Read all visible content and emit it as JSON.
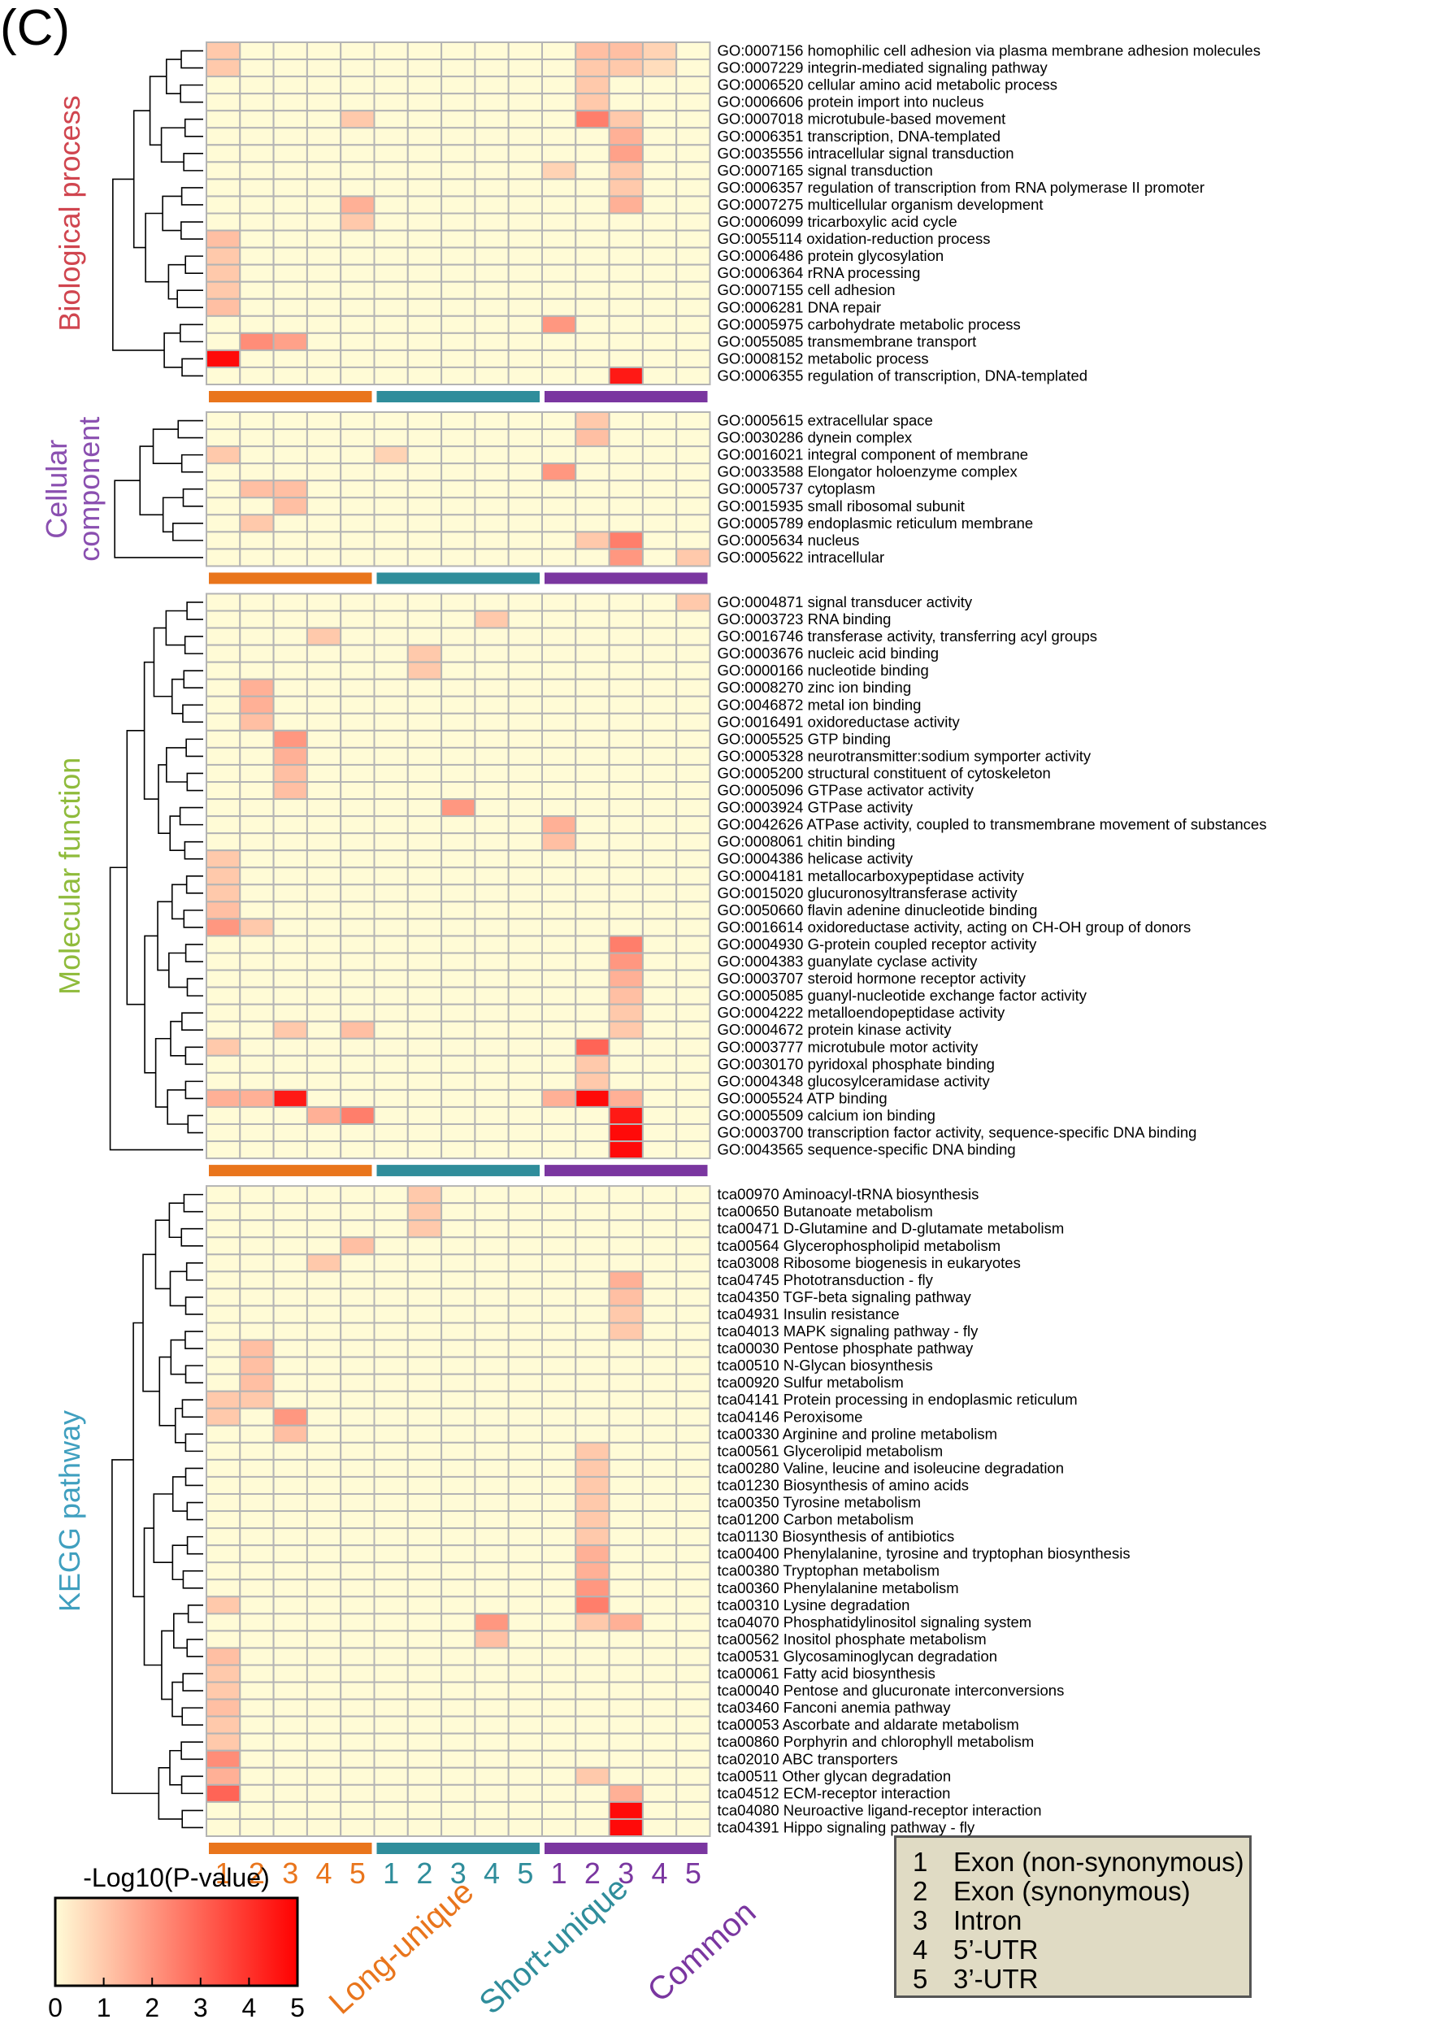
{
  "panel_label": "(C)",
  "colors": {
    "low": "#fffbd6",
    "high": "#ff0000",
    "grid": "#b4b4b4",
    "long_unique": "#e9751c",
    "short_unique": "#2f8d9b",
    "common": "#7a36a0",
    "biological_process": "#d0454f",
    "cellular_component": "#8a4fb0",
    "molecular_function": "#8fbb3b",
    "kegg_pathway": "#3f9fbf"
  },
  "groups": [
    {
      "name": "Long-unique",
      "color": "#e9751c"
    },
    {
      "name": "Short-unique",
      "color": "#2f8d9b"
    },
    {
      "name": "Common",
      "color": "#7a36a0"
    }
  ],
  "column_numbers": [
    "1",
    "2",
    "3",
    "4",
    "5"
  ],
  "type_legend": [
    {
      "num": "1",
      "label": "Exon (non-synonymous)"
    },
    {
      "num": "2",
      "label": "Exon (synonymous)"
    },
    {
      "num": "3",
      "label": "Intron"
    },
    {
      "num": "4",
      "label": "5’-UTR"
    },
    {
      "num": "5",
      "label": "3’-UTR"
    }
  ],
  "chart_data": {
    "type": "heatmap",
    "colorbar": {
      "title": "-Log10(P-value)",
      "range": [
        0,
        5
      ],
      "ticks": [
        "0",
        "1",
        "2",
        "3",
        "4",
        "5"
      ]
    },
    "columns_note": "15 columns: Long-unique 1–5, Short-unique 1–5, Common 1–5",
    "sections": [
      {
        "label_parts": [
          {
            "text": "Biological process",
            "color": "#d0454f"
          }
        ],
        "rows": [
          {
            "label": "GO:0007156 homophilic cell adhesion via plasma membrane adhesion molecules",
            "cells": {
              "0": 1,
              "11": 1.2,
              "12": 1.2,
              "13": 0.8
            }
          },
          {
            "label": "GO:0007229 integrin-mediated signaling pathway",
            "cells": {
              "0": 1,
              "11": 1,
              "12": 1,
              "13": 0.6
            }
          },
          {
            "label": "GO:0006520 cellular amino acid metabolic process",
            "cells": {
              "11": 1
            }
          },
          {
            "label": "GO:0006606 protein import into nucleus",
            "cells": {
              "11": 1
            }
          },
          {
            "label": "GO:0007018 microtubule-based movement",
            "cells": {
              "4": 1,
              "11": 2.5,
              "12": 1
            }
          },
          {
            "label": "GO:0006351 transcription, DNA-templated",
            "cells": {
              "12": 1.5
            }
          },
          {
            "label": "GO:0035556 intracellular signal transduction",
            "cells": {
              "12": 1.8
            }
          },
          {
            "label": "GO:0007165 signal transduction",
            "cells": {
              "10": 0.8,
              "12": 1
            }
          },
          {
            "label": "GO:0006357 regulation of transcription from RNA polymerase II promoter",
            "cells": {
              "12": 1
            }
          },
          {
            "label": "GO:0007275 multicellular organism development",
            "cells": {
              "4": 1.5,
              "12": 1.5
            }
          },
          {
            "label": "GO:0006099 tricarboxylic acid cycle",
            "cells": {
              "4": 1
            }
          },
          {
            "label": "GO:0055114 oxidation-reduction process",
            "cells": {
              "0": 1.2
            }
          },
          {
            "label": "GO:0006486 protein glycosylation",
            "cells": {
              "0": 1
            }
          },
          {
            "label": "GO:0006364 rRNA processing",
            "cells": {
              "0": 1
            }
          },
          {
            "label": "GO:0007155 cell adhesion",
            "cells": {
              "0": 1
            }
          },
          {
            "label": "GO:0006281 DNA repair",
            "cells": {
              "0": 1.2
            }
          },
          {
            "label": "GO:0005975 carbohydrate metabolic process",
            "cells": {
              "10": 2
            }
          },
          {
            "label": "GO:0055085 transmembrane transport",
            "cells": {
              "1": 2.2,
              "2": 1.8
            }
          },
          {
            "label": "GO:0008152 metabolic process",
            "cells": {
              "0": 4.8
            }
          },
          {
            "label": "GO:0006355 regulation of transcription, DNA-templated",
            "cells": {
              "12": 4.5
            }
          }
        ]
      },
      {
        "label_parts": [
          {
            "text": "Cellular",
            "color": "#8a4fb0"
          },
          {
            "text": "component",
            "color": "#8a4fb0"
          }
        ],
        "rows": [
          {
            "label": "GO:0005615 extracellular space",
            "cells": {
              "11": 1
            }
          },
          {
            "label": "GO:0030286 dynein complex",
            "cells": {
              "11": 1.2
            }
          },
          {
            "label": "GO:0016021 integral component of membrane",
            "cells": {
              "0": 1,
              "5": 0.8
            }
          },
          {
            "label": "GO:0033588 Elongator holoenzyme complex",
            "cells": {
              "10": 2
            }
          },
          {
            "label": "GO:0005737 cytoplasm",
            "cells": {
              "1": 1.2,
              "2": 1.2
            }
          },
          {
            "label": "GO:0015935 small ribosomal subunit",
            "cells": {
              "2": 1.2
            }
          },
          {
            "label": "GO:0005789 endoplasmic reticulum membrane",
            "cells": {
              "1": 1
            }
          },
          {
            "label": "GO:0005634 nucleus",
            "cells": {
              "11": 1,
              "12": 2.5
            }
          },
          {
            "label": "GO:0005622 intracellular",
            "cells": {
              "12": 2,
              "14": 1
            }
          }
        ]
      },
      {
        "label_parts": [
          {
            "text": "Molecular function",
            "color": "#8fbb3b"
          }
        ],
        "rows": [
          {
            "label": "GO:0004871 signal transducer activity",
            "cells": {
              "14": 1
            }
          },
          {
            "label": "GO:0003723 RNA binding",
            "cells": {
              "8": 1
            }
          },
          {
            "label": "GO:0016746 transferase activity, transferring acyl groups",
            "cells": {
              "3": 1
            }
          },
          {
            "label": "GO:0003676 nucleic acid binding",
            "cells": {
              "6": 1
            }
          },
          {
            "label": "GO:0000166 nucleotide binding",
            "cells": {
              "6": 1
            }
          },
          {
            "label": "GO:0008270 zinc ion binding",
            "cells": {
              "1": 1.5
            }
          },
          {
            "label": "GO:0046872 metal ion binding",
            "cells": {
              "1": 1.5
            }
          },
          {
            "label": "GO:0016491 oxidoreductase activity",
            "cells": {
              "1": 1.2
            }
          },
          {
            "label": "GO:0005525 GTP binding",
            "cells": {
              "2": 2
            }
          },
          {
            "label": "GO:0005328 neurotransmitter:sodium symporter activity",
            "cells": {
              "2": 1.5
            }
          },
          {
            "label": "GO:0005200 structural constituent of cytoskeleton",
            "cells": {
              "2": 1.2
            }
          },
          {
            "label": "GO:0005096 GTPase activator activity",
            "cells": {
              "2": 1.2
            }
          },
          {
            "label": "GO:0003924 GTPase activity",
            "cells": {
              "7": 2
            }
          },
          {
            "label": "GO:0042626 ATPase activity, coupled to transmembrane movement of substances",
            "cells": {
              "10": 1.5
            }
          },
          {
            "label": "GO:0008061 chitin binding",
            "cells": {
              "10": 1.2
            }
          },
          {
            "label": "GO:0004386 helicase activity",
            "cells": {
              "0": 1
            }
          },
          {
            "label": "GO:0004181 metallocarboxypeptidase activity",
            "cells": {
              "0": 1
            }
          },
          {
            "label": "GO:0015020 glucuronosyltransferase activity",
            "cells": {
              "0": 1
            }
          },
          {
            "label": "GO:0050660 flavin adenine dinucleotide binding",
            "cells": {
              "0": 1.2
            }
          },
          {
            "label": "GO:0016614 oxidoreductase activity, acting on CH-OH group of donors",
            "cells": {
              "0": 2,
              "1": 1
            }
          },
          {
            "label": "GO:0004930 G-protein coupled receptor activity",
            "cells": {
              "12": 2.5
            }
          },
          {
            "label": "GO:0004383 guanylate cyclase activity",
            "cells": {
              "12": 2
            }
          },
          {
            "label": "GO:0003707 steroid hormone receptor activity",
            "cells": {
              "12": 1.5
            }
          },
          {
            "label": "GO:0005085 guanyl-nucleotide exchange factor activity",
            "cells": {
              "12": 1.2
            }
          },
          {
            "label": "GO:0004222 metalloendopeptidase activity",
            "cells": {
              "12": 1
            }
          },
          {
            "label": "GO:0004672 protein kinase activity",
            "cells": {
              "2": 1,
              "4": 1.2,
              "12": 1
            }
          },
          {
            "label": "GO:0003777 microtubule motor activity",
            "cells": {
              "0": 1,
              "11": 3
            }
          },
          {
            "label": "GO:0030170 pyridoxal phosphate binding",
            "cells": {
              "11": 1
            }
          },
          {
            "label": "GO:0004348 glucosylceramidase activity",
            "cells": {
              "11": 1
            }
          },
          {
            "label": "GO:0005524 ATP binding",
            "cells": {
              "0": 1.5,
              "1": 1.5,
              "2": 4.5,
              "10": 1.5,
              "11": 4.8,
              "12": 1.5
            }
          },
          {
            "label": "GO:0005509 calcium ion binding",
            "cells": {
              "3": 1.5,
              "4": 2.5,
              "12": 4.5
            }
          },
          {
            "label": "GO:0003700 transcription factor activity, sequence-specific DNA binding",
            "cells": {
              "12": 4.8
            }
          },
          {
            "label": "GO:0043565 sequence-specific DNA binding",
            "cells": {
              "12": 4.8
            }
          }
        ]
      },
      {
        "label_parts": [
          {
            "text": "KEGG",
            "color": "#3f9fbf"
          },
          {
            "text": " pathway",
            "color": "#3f9fbf"
          }
        ],
        "rows": [
          {
            "label": "tca00970 Aminoacyl-tRNA biosynthesis",
            "cells": {
              "6": 1
            }
          },
          {
            "label": "tca00650 Butanoate metabolism",
            "cells": {
              "6": 1
            }
          },
          {
            "label": "tca00471 D-Glutamine and D-glutamate metabolism",
            "cells": {
              "6": 1
            }
          },
          {
            "label": "tca00564 Glycerophospholipid metabolism",
            "cells": {
              "4": 1.2
            }
          },
          {
            "label": "tca03008 Ribosome biogenesis in eukaryotes",
            "cells": {
              "3": 1
            }
          },
          {
            "label": "tca04745 Phototransduction - fly",
            "cells": {
              "12": 1.5
            }
          },
          {
            "label": "tca04350 TGF-beta signaling pathway",
            "cells": {
              "12": 1.2
            }
          },
          {
            "label": "tca04931 Insulin resistance",
            "cells": {
              "12": 1
            }
          },
          {
            "label": "tca04013 MAPK signaling pathway - fly",
            "cells": {
              "12": 1
            }
          },
          {
            "label": "tca00030 Pentose phosphate pathway",
            "cells": {
              "1": 1.2
            }
          },
          {
            "label": "tca00510 N-Glycan biosynthesis",
            "cells": {
              "1": 1.2
            }
          },
          {
            "label": "tca00920 Sulfur metabolism",
            "cells": {
              "1": 1.2
            }
          },
          {
            "label": "tca04141 Protein processing in endoplasmic reticulum",
            "cells": {
              "0": 1,
              "1": 1
            }
          },
          {
            "label": "tca04146 Peroxisome",
            "cells": {
              "0": 1,
              "2": 2
            }
          },
          {
            "label": "tca00330 Arginine and proline metabolism",
            "cells": {
              "2": 1.2
            }
          },
          {
            "label": "tca00561 Glycerolipid metabolism",
            "cells": {
              "11": 1
            }
          },
          {
            "label": "tca00280 Valine, leucine and isoleucine degradation",
            "cells": {
              "11": 1
            }
          },
          {
            "label": "tca01230 Biosynthesis of amino acids",
            "cells": {
              "11": 1
            }
          },
          {
            "label": "tca00350 Tyrosine metabolism",
            "cells": {
              "11": 1
            }
          },
          {
            "label": "tca01200 Carbon metabolism",
            "cells": {
              "11": 1
            }
          },
          {
            "label": "tca01130 Biosynthesis of antibiotics",
            "cells": {
              "11": 1
            }
          },
          {
            "label": "tca00400 Phenylalanine, tyrosine and tryptophan biosynthesis",
            "cells": {
              "11": 1.5
            }
          },
          {
            "label": "tca00380 Tryptophan metabolism",
            "cells": {
              "11": 1.5
            }
          },
          {
            "label": "tca00360 Phenylalanine metabolism",
            "cells": {
              "11": 2
            }
          },
          {
            "label": "tca00310 Lysine degradation",
            "cells": {
              "0": 1,
              "11": 2.5
            }
          },
          {
            "label": "tca04070 Phosphatidylinositol signaling system",
            "cells": {
              "8": 2,
              "11": 1,
              "12": 1.5
            }
          },
          {
            "label": "tca00562 Inositol phosphate metabolism",
            "cells": {
              "8": 1.2
            }
          },
          {
            "label": "tca00531 Glycosaminoglycan degradation",
            "cells": {
              "0": 1.2
            }
          },
          {
            "label": "tca00061 Fatty acid biosynthesis",
            "cells": {
              "0": 1
            }
          },
          {
            "label": "tca00040 Pentose and glucuronate interconversions",
            "cells": {
              "0": 1
            }
          },
          {
            "label": "tca03460 Fanconi anemia pathway",
            "cells": {
              "0": 1.2
            }
          },
          {
            "label": "tca00053 Ascorbate and aldarate metabolism",
            "cells": {
              "0": 1
            }
          },
          {
            "label": "tca00860 Porphyrin and chlorophyll metabolism",
            "cells": {
              "0": 1
            }
          },
          {
            "label": "tca02010 ABC transporters",
            "cells": {
              "0": 2.2
            }
          },
          {
            "label": "tca00511 Other glycan degradation",
            "cells": {
              "0": 1.5,
              "11": 1
            }
          },
          {
            "label": "tca04512 ECM-receptor interaction",
            "cells": {
              "0": 3,
              "12": 1.5
            }
          },
          {
            "label": "tca04080 Neuroactive ligand-receptor interaction",
            "cells": {
              "12": 4.8
            }
          },
          {
            "label": "tca04391 Hippo signaling pathway - fly",
            "cells": {
              "12": 4.8
            }
          }
        ]
      }
    ]
  }
}
